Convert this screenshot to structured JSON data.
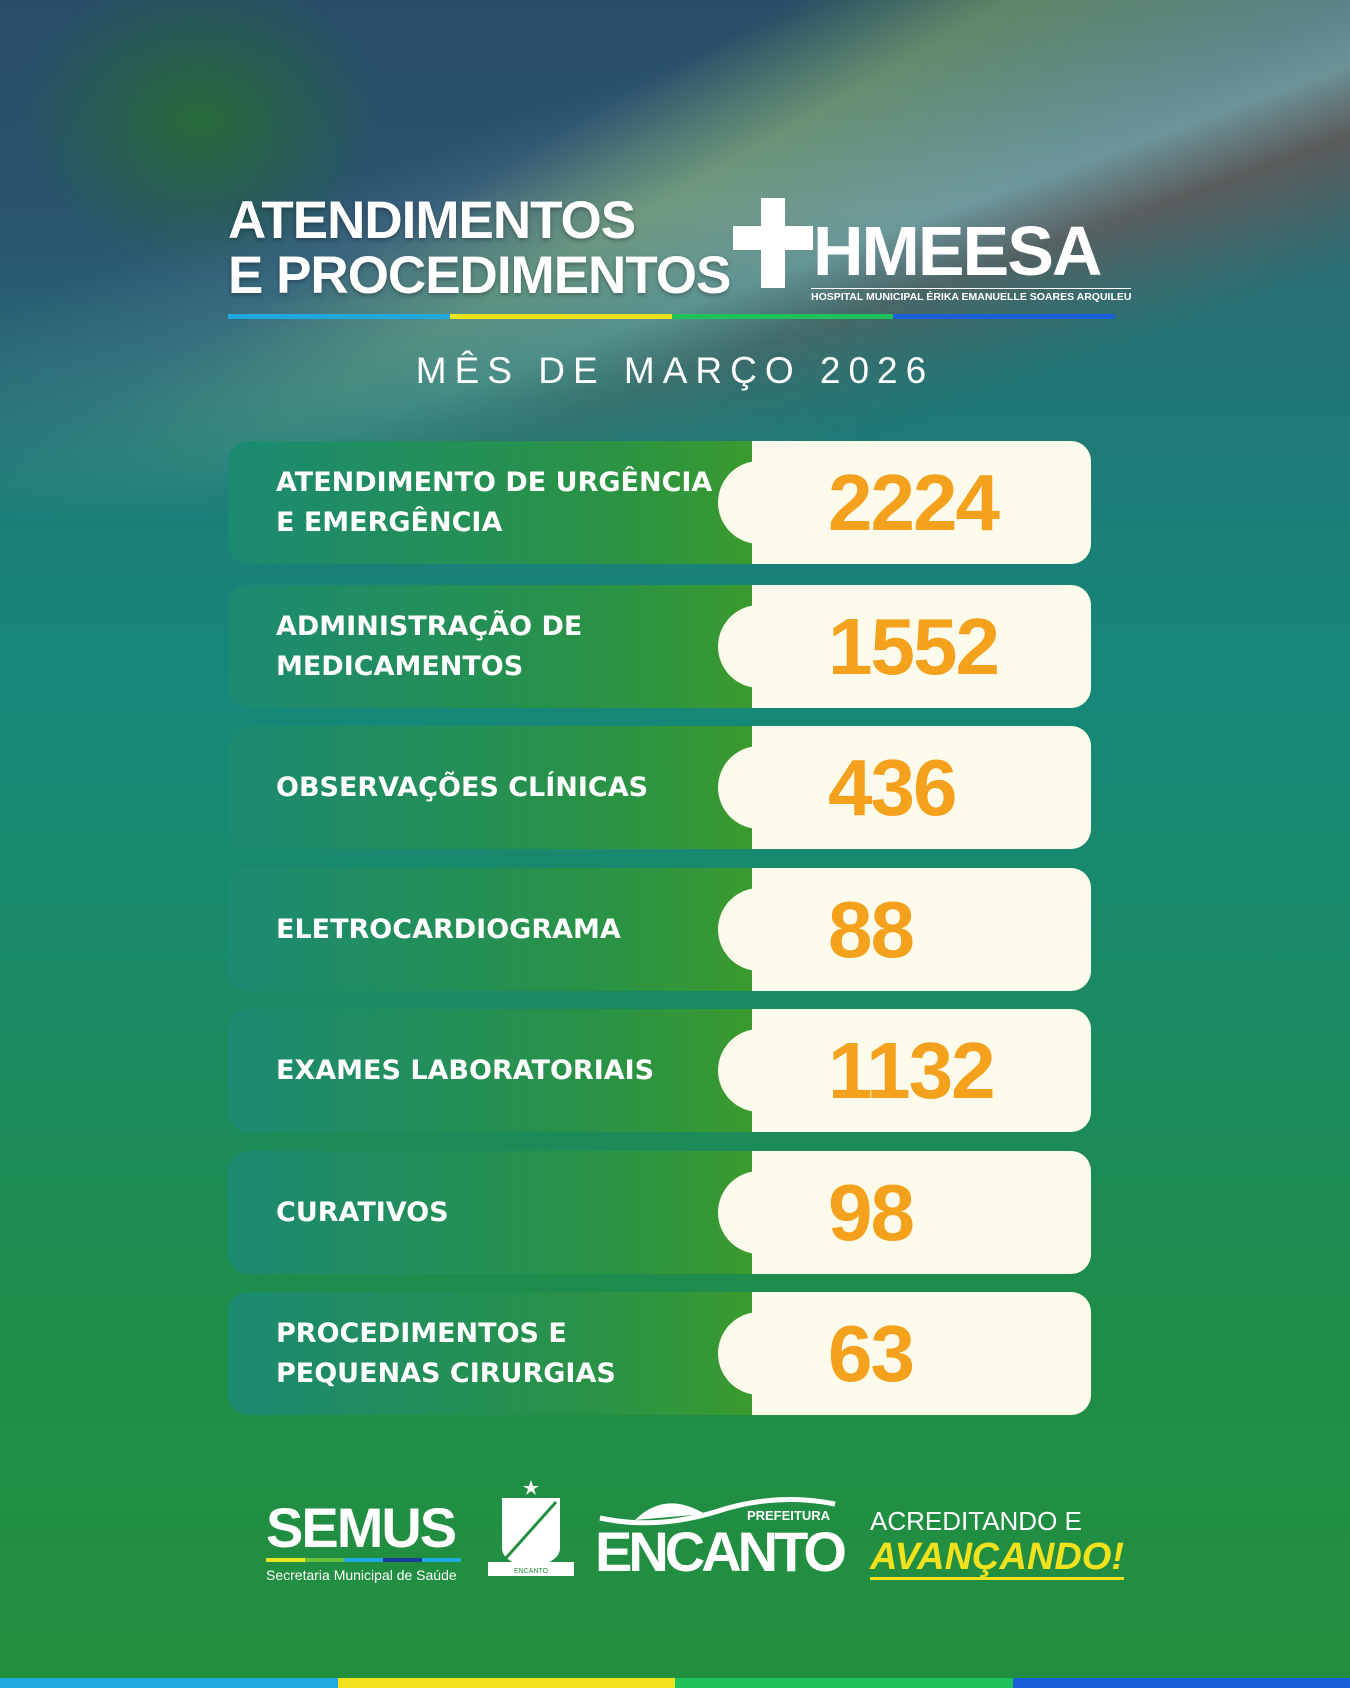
{
  "header": {
    "title_line1": "ATENDIMENTOS",
    "title_line2": "E PROCEDIMENTOS",
    "logo_name": "HMEESA",
    "logo_subtitle": "HOSPITAL MUNICIPAL ÉRIKA EMANUELLE SOARES ARQUILEU",
    "month": "MÊS DE MARÇO 2026"
  },
  "colors": {
    "number": "#f4a21e",
    "card_value_bg": "#fdfbec",
    "rule": [
      "#1fa9e0",
      "#f2e21e",
      "#1fc25a",
      "#1a5fd8"
    ]
  },
  "items": [
    {
      "label": "ATENDIMENTO DE URGÊNCIA E EMERGÊNCIA",
      "value": "2224"
    },
    {
      "label": "ADMINISTRAÇÃO DE MEDICAMENTOS",
      "value": "1552"
    },
    {
      "label": "OBSERVAÇÕES CLÍNICAS",
      "value": "436"
    },
    {
      "label": "ELETROCARDIOGRAMA",
      "value": "88"
    },
    {
      "label": "EXAMES LABORATORIAIS",
      "value": "1132"
    },
    {
      "label": "CURATIVOS",
      "value": "98"
    },
    {
      "label": "PROCEDIMENTOS E PEQUENAS CIRURGIAS",
      "value": "63"
    }
  ],
  "footer": {
    "semus": "SEMUS",
    "semus_sub": "Secretaria Municipal de Saúde",
    "crest_text": "ENCANTO",
    "prefeitura": "PREFEITURA",
    "encanto": "ENCANTO",
    "slogan1": "ACREDITANDO E",
    "slogan2": "AVANÇANDO!"
  }
}
